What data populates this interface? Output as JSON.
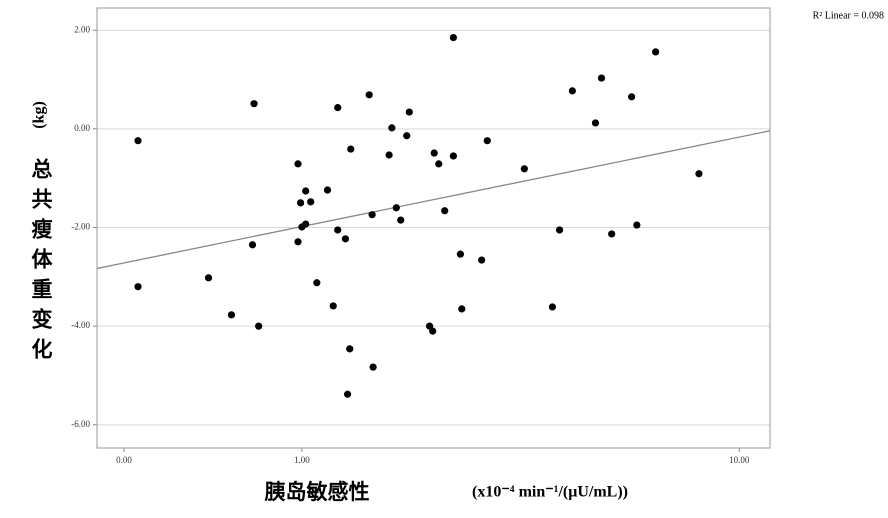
{
  "chart_data": {
    "type": "scatter",
    "y_label": "总共瘦体重变化",
    "y_unit": "(kg)",
    "x_label": "胰岛敏感性",
    "x_unit": "(x10⁻⁴ min⁻¹/(μU/mL))",
    "annotation": "R² Linear = 0.098",
    "xscale": "log1p",
    "xlim": [
      -0.1,
      11.4
    ],
    "xticks": [
      {
        "value": 0,
        "label": "0.00"
      },
      {
        "value": 1,
        "label": "1.00"
      },
      {
        "value": 10,
        "label": "10.00"
      }
    ],
    "ylim": [
      -6.47,
      2.45
    ],
    "yticks": [
      {
        "value": 2,
        "label": "2.00"
      },
      {
        "value": 0,
        "label": "0.00"
      },
      {
        "value": -2,
        "label": "-2.00"
      },
      {
        "value": -4,
        "label": "-4.00"
      },
      {
        "value": -6,
        "label": "-6.00"
      }
    ],
    "grid": true,
    "color": "#000000",
    "x": [
      0.056,
      0.056,
      0.39,
      0.52,
      0.65,
      0.66,
      0.69,
      0.97,
      0.99,
      1.0,
      0.97,
      1.03,
      1.07,
      1.03,
      1.12,
      1.21,
      1.26,
      1.3,
      1.3,
      1.37,
      1.42,
      1.41,
      1.39,
      1.6,
      1.63,
      1.64,
      1.81,
      1.84,
      1.89,
      1.94,
      2.01,
      2.04,
      2.29,
      2.33,
      2.35,
      2.41,
      2.49,
      2.61,
      2.61,
      2.71,
      2.73,
      3.03,
      3.12,
      3.76,
      4.31,
      4.46,
      4.74,
      5.28,
      5.43,
      5.69,
      6.23,
      6.38,
      6.94,
      8.4
    ],
    "values": [
      -0.24,
      -3.2,
      -3.02,
      -3.77,
      -2.35,
      0.51,
      -4.0,
      -0.71,
      -1.5,
      -1.99,
      -2.29,
      -1.26,
      -1.48,
      -1.93,
      -3.12,
      -1.24,
      -3.59,
      -2.05,
      0.43,
      -2.23,
      -0.41,
      -4.46,
      -5.38,
      0.69,
      -1.74,
      -4.83,
      -0.53,
      0.02,
      -1.6,
      -1.85,
      -0.14,
      0.34,
      -4.0,
      -4.1,
      -0.49,
      -0.71,
      -1.66,
      -0.55,
      1.85,
      -2.54,
      -3.65,
      -2.66,
      -0.24,
      -0.81,
      -3.61,
      -2.05,
      0.77,
      0.12,
      1.03,
      -2.13,
      0.65,
      -1.95,
      1.56,
      -0.91
    ],
    "fit_line": {
      "color": "#888888",
      "x": [
        -0.1,
        11.4
      ],
      "y": [
        -2.83,
        -0.04
      ]
    }
  }
}
